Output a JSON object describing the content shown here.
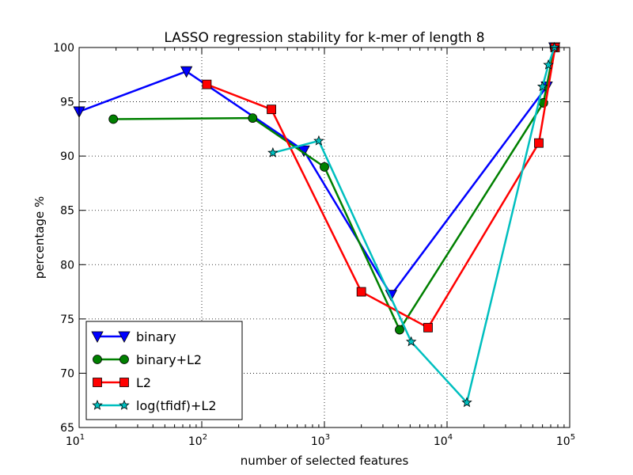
{
  "chart_data": {
    "type": "line",
    "title": "LASSO regression stability for k-mer of length 8",
    "xlabel": "number of selected features",
    "ylabel": "percentage %",
    "x_scale": "log",
    "xlim": [
      10,
      100000
    ],
    "ylim": [
      65,
      100
    ],
    "grid": true,
    "legend_position": "lower-left",
    "x_ticks": [
      {
        "value": 10,
        "base": "10",
        "exp": "1"
      },
      {
        "value": 100,
        "base": "10",
        "exp": "2"
      },
      {
        "value": 1000,
        "base": "10",
        "exp": "3"
      },
      {
        "value": 10000,
        "base": "10",
        "exp": "4"
      },
      {
        "value": 100000,
        "base": "10",
        "exp": "5"
      }
    ],
    "y_ticks": [
      {
        "value": 65,
        "label": "65"
      },
      {
        "value": 70,
        "label": "70"
      },
      {
        "value": 75,
        "label": "75"
      },
      {
        "value": 80,
        "label": "80"
      },
      {
        "value": 85,
        "label": "85"
      },
      {
        "value": 90,
        "label": "90"
      },
      {
        "value": 95,
        "label": "95"
      },
      {
        "value": 100,
        "label": "100"
      }
    ],
    "series": [
      {
        "name": "binary",
        "color": "#0000ff",
        "marker": "triangle-down",
        "points": [
          {
            "x": 10,
            "y": 94.1
          },
          {
            "x": 75,
            "y": 97.8
          },
          {
            "x": 680,
            "y": 90.5
          },
          {
            "x": 3500,
            "y": 77.2
          },
          {
            "x": 65000,
            "y": 96.4
          },
          {
            "x": 75000,
            "y": 100
          }
        ]
      },
      {
        "name": "binary+L2",
        "color": "#008000",
        "marker": "circle",
        "points": [
          {
            "x": 19,
            "y": 93.4
          },
          {
            "x": 260,
            "y": 93.5
          },
          {
            "x": 1000,
            "y": 89.0
          },
          {
            "x": 4100,
            "y": 74.0
          },
          {
            "x": 61000,
            "y": 94.9
          },
          {
            "x": 75000,
            "y": 100
          }
        ]
      },
      {
        "name": "L2",
        "color": "#ff0000",
        "marker": "square",
        "points": [
          {
            "x": 110,
            "y": 96.6
          },
          {
            "x": 370,
            "y": 94.3
          },
          {
            "x": 2000,
            "y": 77.5
          },
          {
            "x": 7000,
            "y": 74.2
          },
          {
            "x": 56000,
            "y": 91.2
          },
          {
            "x": 76000,
            "y": 100
          }
        ]
      },
      {
        "name": "log(tfidf)+L2",
        "color": "#00bfbf",
        "marker": "star",
        "points": [
          {
            "x": 380,
            "y": 90.3
          },
          {
            "x": 900,
            "y": 91.4
          },
          {
            "x": 5100,
            "y": 72.9
          },
          {
            "x": 14500,
            "y": 67.3
          },
          {
            "x": 60000,
            "y": 96.4
          },
          {
            "x": 67000,
            "y": 98.4
          },
          {
            "x": 75000,
            "y": 100
          }
        ]
      }
    ]
  }
}
